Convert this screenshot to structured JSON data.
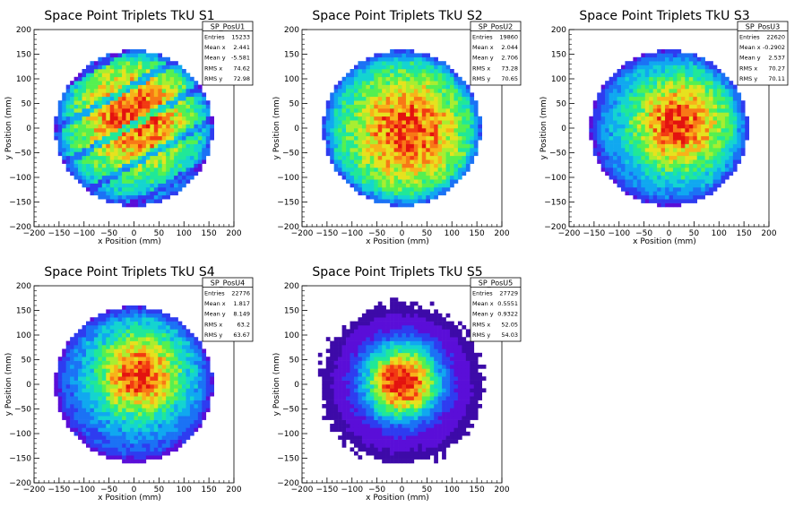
{
  "chart_data": [
    {
      "type": "heatmap",
      "title": "Space Point Triplets TkU S1",
      "xlabel": "x Position (mm)",
      "ylabel": "y Position (mm)",
      "xlim": [
        -200,
        200
      ],
      "ylim": [
        -200,
        200
      ],
      "x_ticks": [
        "−200",
        "−150",
        "−100",
        "−50",
        "0",
        "50",
        "100",
        "150",
        "200"
      ],
      "y_ticks": [
        "−200",
        "−150",
        "−100",
        "−50",
        "0",
        "50",
        "100",
        "150",
        "200"
      ],
      "stats_box": {
        "name": "SP_PosU1",
        "rows": [
          {
            "label": "Entries",
            "value": "15233"
          },
          {
            "label": "Mean x",
            "value": "2.441"
          },
          {
            "label": "Mean y",
            "value": "-5.581"
          },
          {
            "label": "RMS x",
            "value": "74.62"
          },
          {
            "label": "RMS y",
            "value": "72.98"
          }
        ]
      },
      "distribution": {
        "shape": "disc",
        "radius_mm": 158,
        "center": [
          2.4,
          -5.6
        ],
        "peak_center": [
          0,
          20
        ],
        "core_sigma_mm": 95,
        "stripes": true,
        "halo": false
      }
    },
    {
      "type": "heatmap",
      "title": "Space Point Triplets TkU S2",
      "xlabel": "x Position (mm)",
      "ylabel": "y Position (mm)",
      "xlim": [
        -200,
        200
      ],
      "ylim": [
        -200,
        200
      ],
      "x_ticks": [
        "−200",
        "−150",
        "−100",
        "−50",
        "0",
        "50",
        "100",
        "150",
        "200"
      ],
      "y_ticks": [
        "−200",
        "−150",
        "−100",
        "−50",
        "0",
        "50",
        "100",
        "150",
        "200"
      ],
      "stats_box": {
        "name": "SP_PosU2",
        "rows": [
          {
            "label": "Entries",
            "value": "19860"
          },
          {
            "label": "Mean x",
            "value": "2.044"
          },
          {
            "label": "Mean y",
            "value": "2.706"
          },
          {
            "label": "RMS x",
            "value": "73.28"
          },
          {
            "label": "RMS y",
            "value": "70.65"
          }
        ]
      },
      "distribution": {
        "shape": "disc",
        "radius_mm": 158,
        "center": [
          2,
          2.7
        ],
        "peak_center": [
          10,
          -5
        ],
        "core_sigma_mm": 95,
        "stripes": false,
        "halo": false
      }
    },
    {
      "type": "heatmap",
      "title": "Space Point Triplets TkU S3",
      "xlabel": "x Position (mm)",
      "ylabel": "y Position (mm)",
      "xlim": [
        -200,
        200
      ],
      "ylim": [
        -200,
        200
      ],
      "x_ticks": [
        "−200",
        "−150",
        "−100",
        "−50",
        "0",
        "50",
        "100",
        "150",
        "200"
      ],
      "y_ticks": [
        "−200",
        "−150",
        "−100",
        "−50",
        "0",
        "50",
        "100",
        "150",
        "200"
      ],
      "stats_box": {
        "name": "SP_PosU3",
        "rows": [
          {
            "label": "Entries",
            "value": "22620"
          },
          {
            "label": "Mean x",
            "value": "-0.2902"
          },
          {
            "label": "Mean y",
            "value": "2.537"
          },
          {
            "label": "RMS x",
            "value": "70.27"
          },
          {
            "label": "RMS y",
            "value": "70.11"
          }
        ]
      },
      "distribution": {
        "shape": "disc",
        "radius_mm": 158,
        "center": [
          -0.3,
          2.5
        ],
        "peak_center": [
          20,
          10
        ],
        "core_sigma_mm": 75,
        "stripes": false,
        "halo": false
      }
    },
    {
      "type": "heatmap",
      "title": "Space Point Triplets TkU S4",
      "xlabel": "x Position (mm)",
      "ylabel": "y Position (mm)",
      "xlim": [
        -200,
        200
      ],
      "ylim": [
        -200,
        200
      ],
      "x_ticks": [
        "−200",
        "−150",
        "−100",
        "−50",
        "0",
        "50",
        "100",
        "150",
        "200"
      ],
      "y_ticks": [
        "−200",
        "−150",
        "−100",
        "−50",
        "0",
        "50",
        "100",
        "150",
        "200"
      ],
      "stats_box": {
        "name": "SP_PosU4",
        "rows": [
          {
            "label": "Entries",
            "value": "22776"
          },
          {
            "label": "Mean x",
            "value": "1.817"
          },
          {
            "label": "Mean y",
            "value": "8.149"
          },
          {
            "label": "RMS x",
            "value": "63.2"
          },
          {
            "label": "RMS y",
            "value": "63.67"
          }
        ]
      },
      "distribution": {
        "shape": "disc",
        "radius_mm": 158,
        "center": [
          1.8,
          8.1
        ],
        "peak_center": [
          10,
          20
        ],
        "core_sigma_mm": 65,
        "stripes": false,
        "halo": false
      }
    },
    {
      "type": "heatmap",
      "title": "Space Point Triplets TkU S5",
      "xlabel": "x Position (mm)",
      "ylabel": "y Position (mm)",
      "xlim": [
        -200,
        200
      ],
      "ylim": [
        -200,
        200
      ],
      "x_ticks": [
        "−200",
        "−150",
        "−100",
        "−50",
        "0",
        "50",
        "100",
        "150",
        "200"
      ],
      "y_ticks": [
        "−200",
        "−150",
        "−100",
        "−50",
        "0",
        "50",
        "100",
        "150",
        "200"
      ],
      "stats_box": {
        "name": "SP_PosU5",
        "rows": [
          {
            "label": "Entries",
            "value": "27729"
          },
          {
            "label": "Mean x",
            "value": "0.5551"
          },
          {
            "label": "Mean y",
            "value": "0.9322"
          },
          {
            "label": "RMS x",
            "value": "52.05"
          },
          {
            "label": "RMS y",
            "value": "54.03"
          }
        ]
      },
      "distribution": {
        "shape": "disc",
        "radius_mm": 158,
        "center": [
          0.6,
          0.9
        ],
        "peak_center": [
          0,
          5
        ],
        "core_sigma_mm": 50,
        "stripes": false,
        "halo": true
      }
    }
  ],
  "colors": {
    "palette": [
      "#3d0aa8",
      "#5a0ed8",
      "#2e3cf0",
      "#1b72f5",
      "#10a8f0",
      "#14d4d0",
      "#20e898",
      "#55f050",
      "#a8ee30",
      "#e6e21e",
      "#f8b21a",
      "#f87816",
      "#f23a12",
      "#e3120f"
    ],
    "axis": "#000000",
    "background": "#ffffff"
  }
}
